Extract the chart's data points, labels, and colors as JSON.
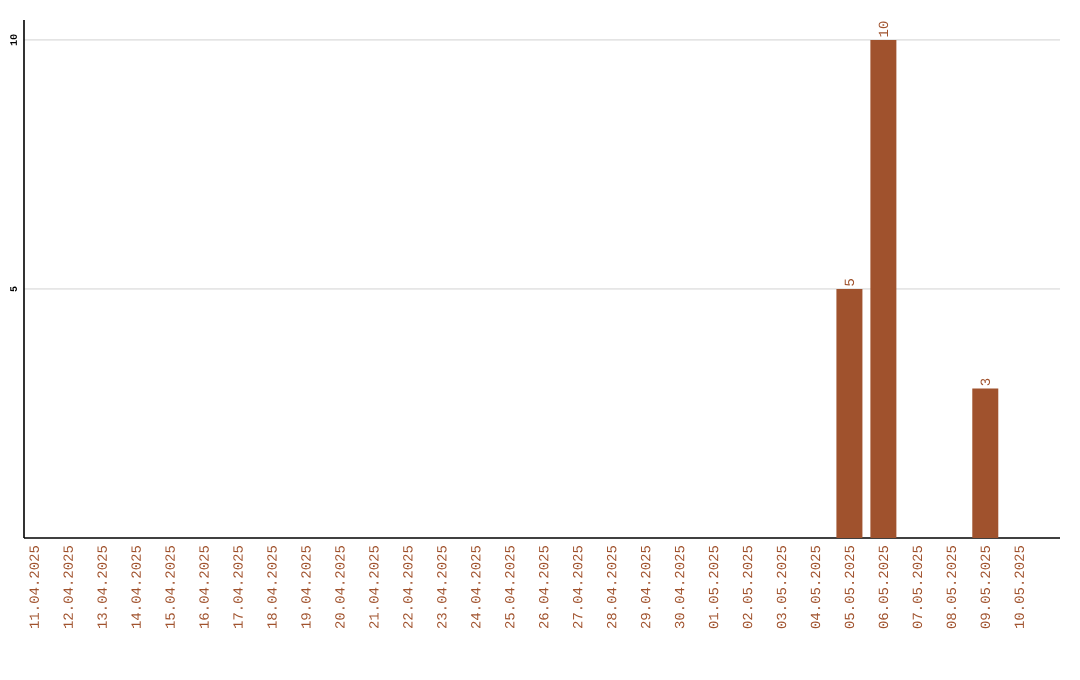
{
  "chart_data": {
    "type": "bar",
    "categories": [
      "11.04.2025",
      "12.04.2025",
      "13.04.2025",
      "14.04.2025",
      "15.04.2025",
      "16.04.2025",
      "17.04.2025",
      "18.04.2025",
      "19.04.2025",
      "20.04.2025",
      "21.04.2025",
      "22.04.2025",
      "23.04.2025",
      "24.04.2025",
      "25.04.2025",
      "26.04.2025",
      "27.04.2025",
      "28.04.2025",
      "29.04.2025",
      "30.04.2025",
      "01.05.2025",
      "02.05.2025",
      "03.05.2025",
      "04.05.2025",
      "05.05.2025",
      "06.05.2025",
      "07.05.2025",
      "08.05.2025",
      "09.05.2025",
      "10.05.2025"
    ],
    "values": [
      0,
      0,
      0,
      0,
      0,
      0,
      0,
      0,
      0,
      0,
      0,
      0,
      0,
      0,
      0,
      0,
      0,
      0,
      0,
      0,
      0,
      0,
      0,
      0,
      5,
      10,
      0,
      0,
      3,
      0
    ],
    "value_labels": [
      null,
      null,
      null,
      null,
      null,
      null,
      null,
      null,
      null,
      null,
      null,
      null,
      null,
      null,
      null,
      null,
      null,
      null,
      null,
      null,
      null,
      null,
      null,
      null,
      "5",
      "10",
      null,
      null,
      "3",
      null
    ],
    "color": "#a0522d",
    "ylim": [
      0,
      10.4
    ],
    "yticks": [
      5,
      10
    ],
    "grid": "y"
  }
}
